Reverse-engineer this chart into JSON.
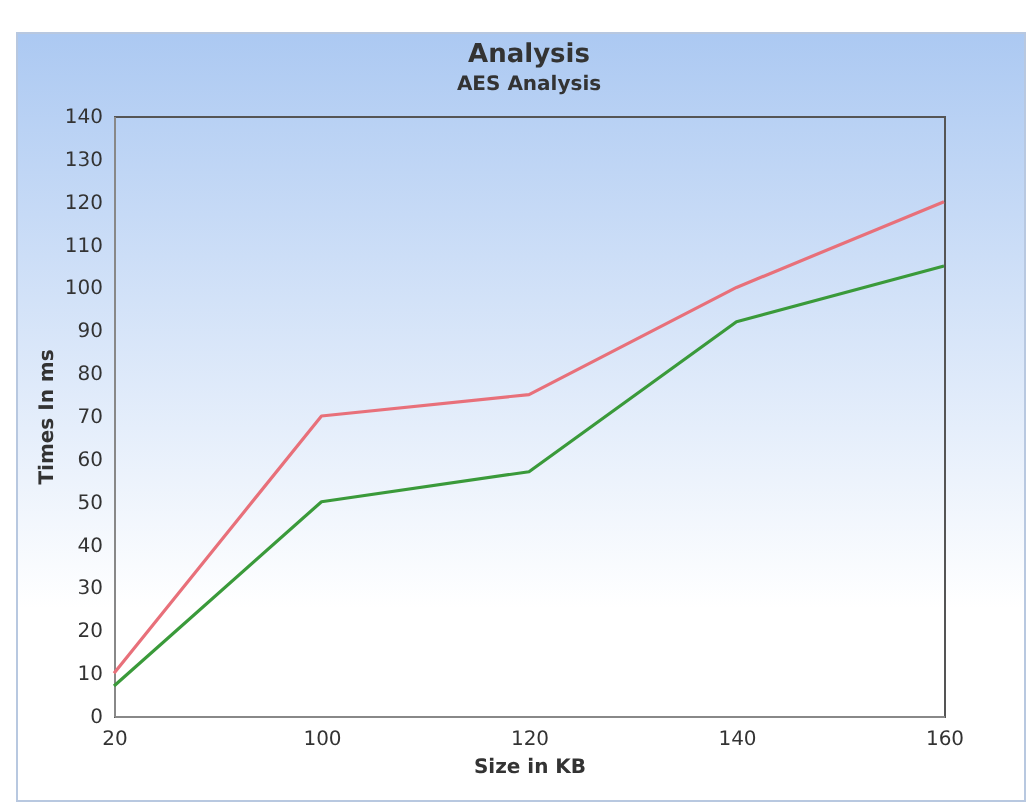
{
  "chart_data": {
    "type": "line",
    "title": "Analysis",
    "subtitle": "AES Analysis",
    "xlabel": "Size in KB",
    "ylabel": "Times In ms",
    "categories": [
      "20",
      "100",
      "120",
      "140",
      "160"
    ],
    "series": [
      {
        "color": "#e8707a",
        "values": [
          10,
          70,
          75,
          100,
          120
        ]
      },
      {
        "color": "#3a9a3a",
        "values": [
          7,
          50,
          57,
          92,
          105
        ]
      }
    ],
    "ylim": [
      0,
      140
    ],
    "yticks": [
      0,
      10,
      20,
      30,
      40,
      50,
      60,
      70,
      80,
      90,
      100,
      110,
      120,
      130,
      140
    ],
    "grid": false,
    "legend": false,
    "marker": "none",
    "line_style": "solid"
  }
}
